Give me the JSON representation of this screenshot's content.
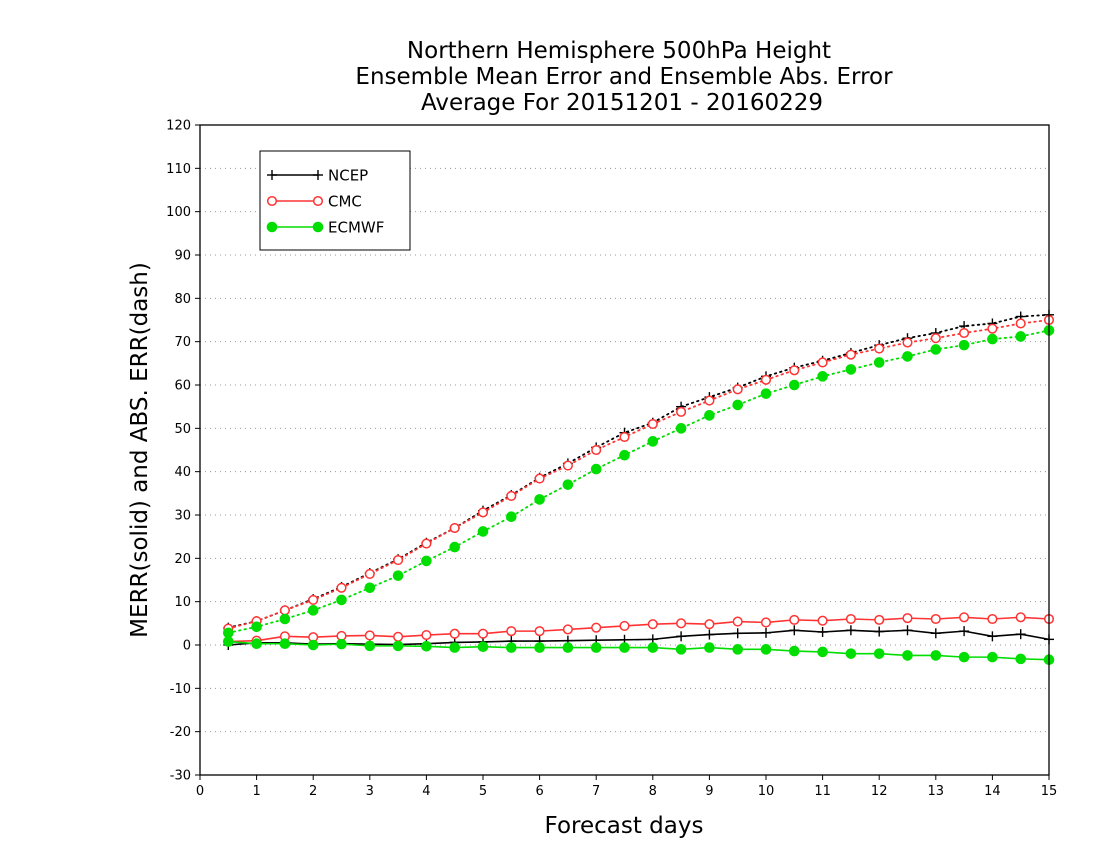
{
  "chart_data": {
    "type": "line",
    "title_lines": [
      "Northern Hemisphere 500hPa Height",
      "Ensemble Mean Error and Ensemble Abs. Error",
      "Average For 20151201 - 20160229"
    ],
    "xlabel": "Forecast days",
    "ylabel": "MERR(solid) and ABS. ERR(dash)",
    "xlim": [
      0,
      15
    ],
    "ylim": [
      -30,
      120
    ],
    "x_ticks": [
      0,
      1,
      2,
      3,
      4,
      5,
      6,
      7,
      8,
      9,
      10,
      11,
      12,
      13,
      14,
      15
    ],
    "y_ticks": [
      -30,
      -20,
      -10,
      0,
      10,
      20,
      30,
      40,
      50,
      60,
      70,
      80,
      90,
      100,
      110,
      120
    ],
    "grid": "horizontal dotted",
    "legend_position": "top-left",
    "x": [
      0.5,
      1,
      1.5,
      2,
      2.5,
      3,
      3.5,
      4,
      4.5,
      5,
      5.5,
      6,
      6.5,
      7,
      7.5,
      8,
      8.5,
      9,
      9.5,
      10,
      10.5,
      11,
      11.5,
      12,
      12.5,
      13,
      13.5,
      14,
      14.5,
      15
    ],
    "series": [
      {
        "name": "NCEP",
        "color": "#000000",
        "marker": "plus",
        "merr": [
          0,
          0.5,
          0.5,
          0.2,
          0.3,
          0.2,
          0.1,
          0.3,
          0.6,
          0.7,
          0.9,
          0.9,
          1.0,
          1.1,
          1.2,
          1.3,
          2.0,
          2.4,
          2.7,
          2.8,
          3.4,
          3.0,
          3.4,
          3.1,
          3.4,
          2.7,
          3.2,
          2.0,
          2.5,
          1.3
        ],
        "abs_err": [
          4.0,
          5.5,
          8.0,
          10.6,
          13.4,
          16.6,
          19.8,
          23.6,
          27.0,
          31.0,
          34.6,
          38.6,
          41.9,
          45.6,
          49.0,
          51.3,
          55.0,
          57.2,
          59.4,
          62.0,
          64.0,
          65.6,
          67.4,
          69.2,
          70.8,
          72.0,
          73.6,
          74.2,
          75.8,
          76.2
        ]
      },
      {
        "name": "CMC",
        "color": "#ff3333",
        "marker": "open-circle",
        "merr": [
          0.8,
          1.0,
          2.0,
          1.8,
          2.1,
          2.2,
          1.9,
          2.3,
          2.6,
          2.6,
          3.2,
          3.2,
          3.6,
          4.0,
          4.4,
          4.8,
          5.0,
          4.8,
          5.4,
          5.2,
          5.8,
          5.6,
          6.0,
          5.8,
          6.2,
          6.0,
          6.4,
          6.0,
          6.4,
          6.0
        ],
        "abs_err": [
          3.8,
          5.5,
          8.0,
          10.4,
          13.2,
          16.4,
          19.6,
          23.4,
          27.0,
          30.6,
          34.4,
          38.4,
          41.4,
          45.0,
          48.0,
          51.0,
          53.8,
          56.4,
          59.0,
          61.2,
          63.4,
          65.2,
          67.0,
          68.4,
          69.8,
          70.8,
          72.0,
          73.0,
          74.2,
          75.0
        ]
      },
      {
        "name": "ECMWF",
        "color": "#00dd00",
        "marker": "filled-circle",
        "merr": [
          0.8,
          0.3,
          0.3,
          0.0,
          0.2,
          -0.2,
          -0.2,
          -0.3,
          -0.6,
          -0.4,
          -0.6,
          -0.6,
          -0.6,
          -0.6,
          -0.6,
          -0.6,
          -1.0,
          -0.6,
          -1.0,
          -1.0,
          -1.4,
          -1.6,
          -2.0,
          -2.0,
          -2.4,
          -2.4,
          -2.8,
          -2.8,
          -3.2,
          -3.4
        ],
        "abs_err": [
          2.8,
          4.2,
          6.0,
          8.0,
          10.4,
          13.2,
          16.0,
          19.4,
          22.6,
          26.2,
          29.6,
          33.6,
          37.0,
          40.6,
          43.8,
          47.0,
          50.0,
          53.0,
          55.4,
          58.0,
          60.0,
          62.0,
          63.6,
          65.2,
          66.6,
          68.2,
          69.2,
          70.6,
          71.2,
          72.6
        ]
      }
    ]
  }
}
